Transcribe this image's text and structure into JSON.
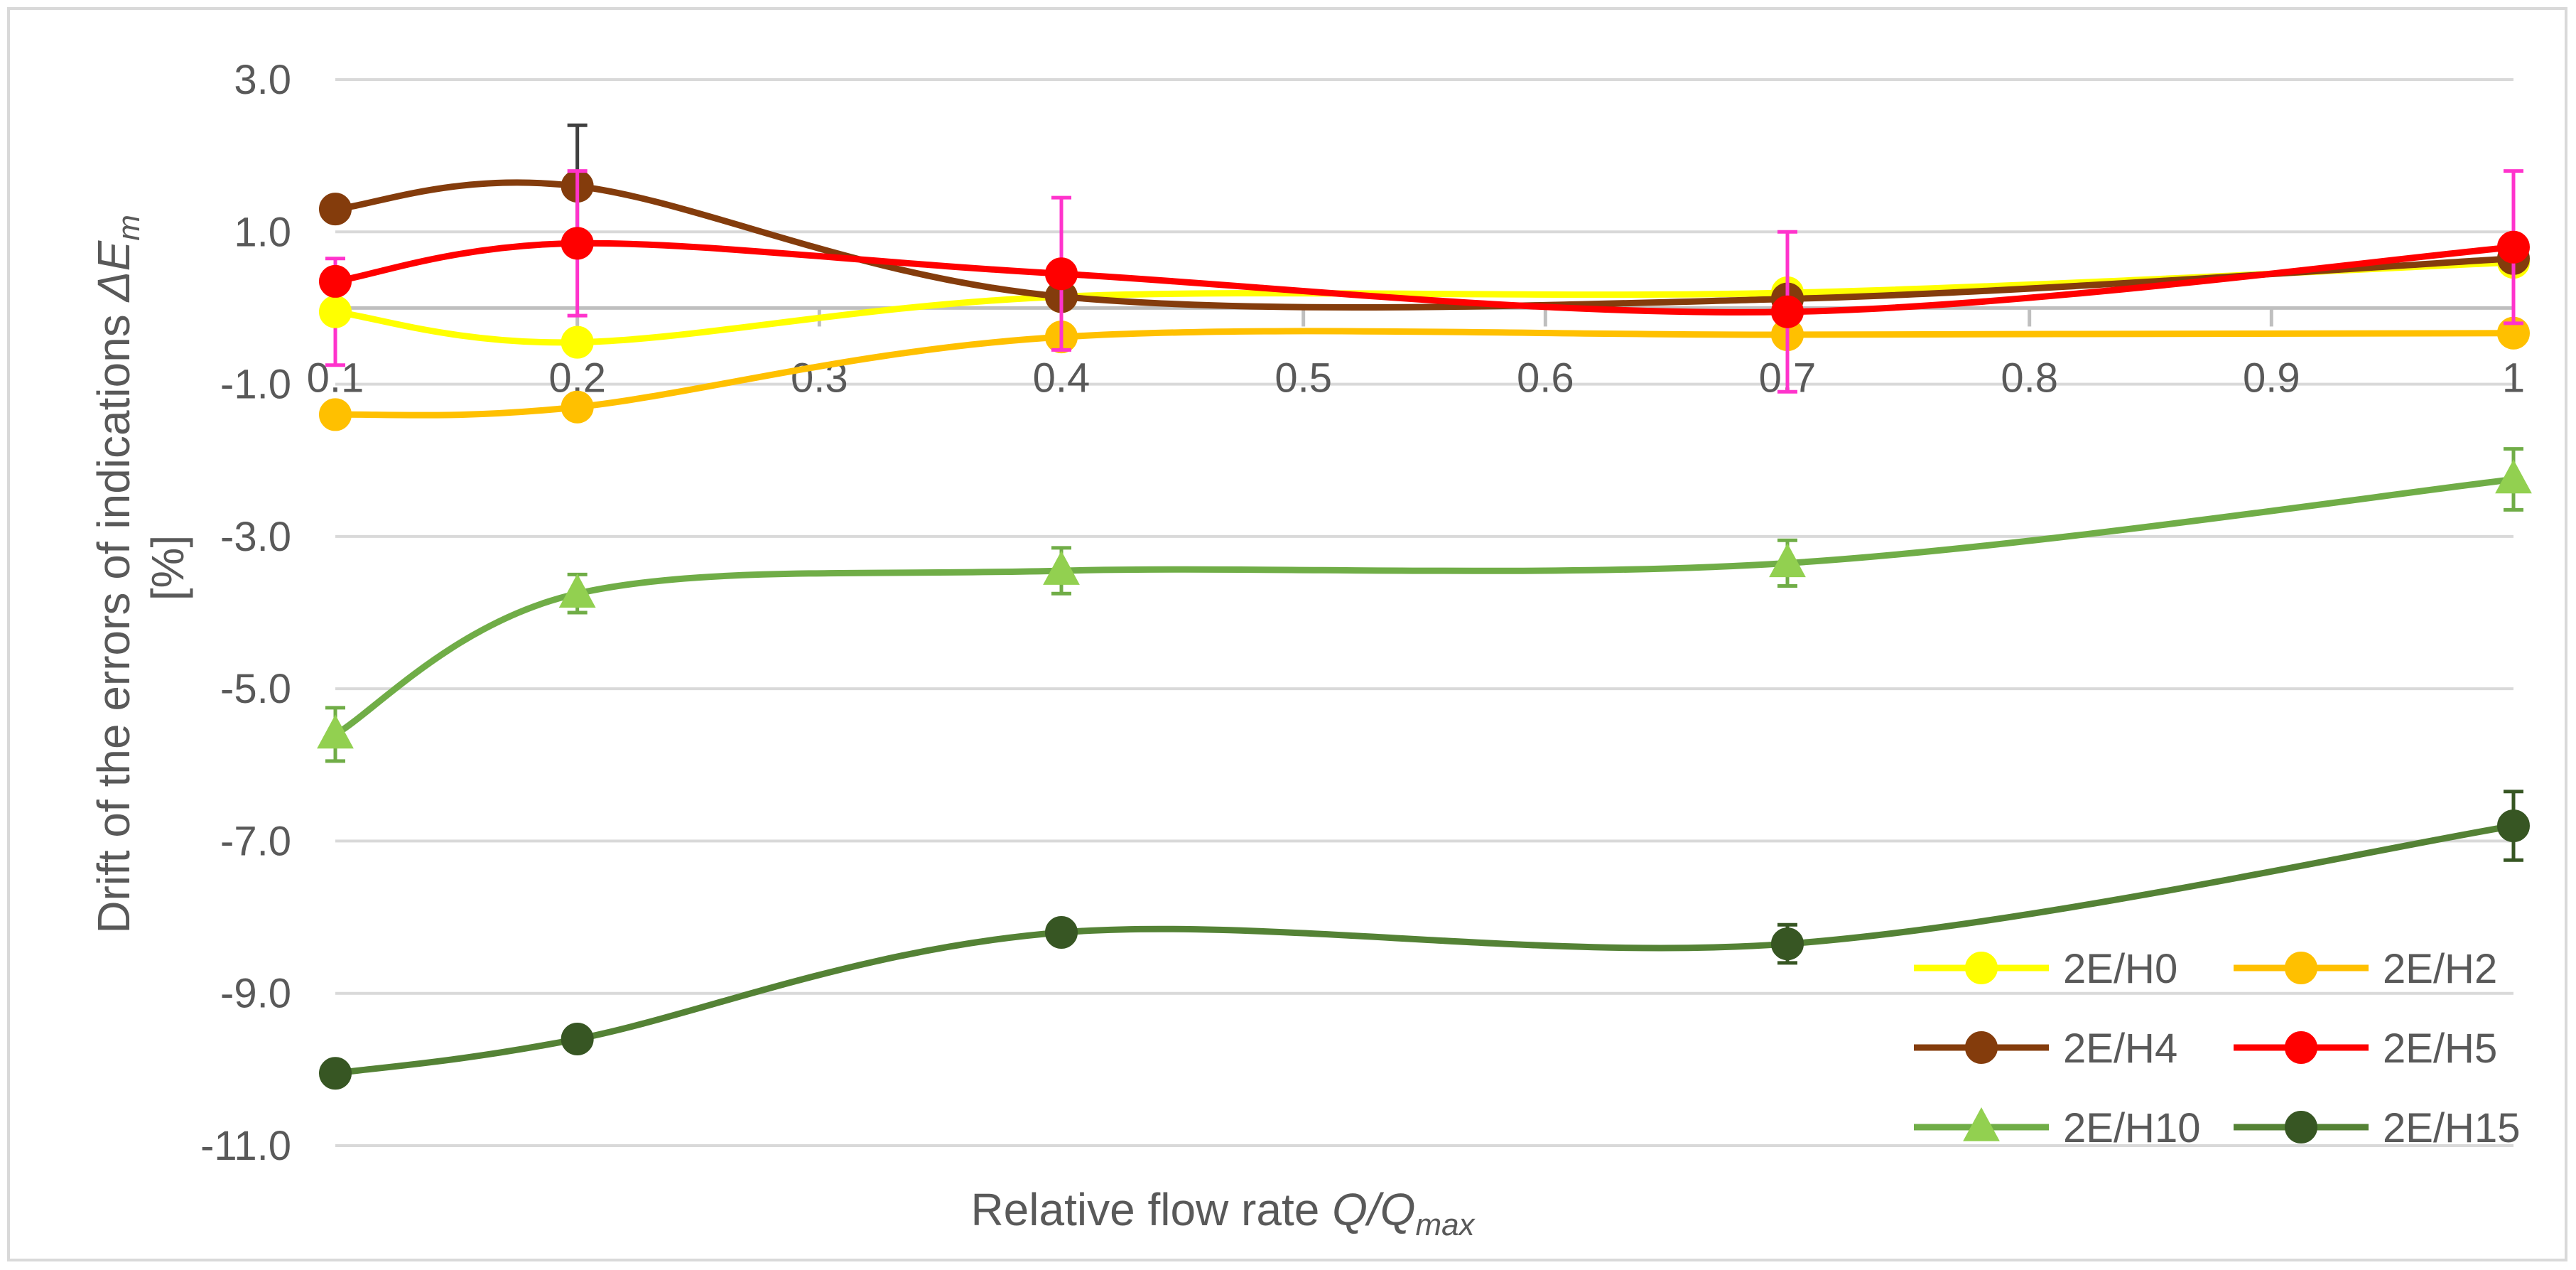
{
  "chart_data": {
    "type": "line",
    "title": "",
    "xlabel_prefix": "Relative flow rate ",
    "xlabel_var": "Q/Q",
    "xlabel_sub": "max",
    "ylabel_line1": "Drift of the errors of indications ",
    "ylabel_var": "ΔE",
    "ylabel_sub": "m",
    "ylabel_line2": "[%]",
    "xlim": [
      0.1,
      1
    ],
    "ylim": [
      -11,
      3
    ],
    "x_ticks": [
      "0.1",
      "0.2",
      "0.3",
      "0.4",
      "0.5",
      "0.6",
      "0.7",
      "0.8",
      "0.9",
      "1"
    ],
    "x_tick_values": [
      0.1,
      0.2,
      0.3,
      0.4,
      0.5,
      0.6,
      0.7,
      0.8,
      0.9,
      1
    ],
    "y_ticks": [
      "3.0",
      "1.0",
      "-1.0",
      "-3.0",
      "-5.0",
      "-7.0",
      "-9.0",
      "-11.0"
    ],
    "y_tick_values": [
      3,
      1,
      -1,
      -3,
      -5,
      -7,
      -9,
      -11
    ],
    "x_axis_at_y": 0,
    "grid": "horizontal",
    "legend_position": "bottom-right",
    "series": [
      {
        "name": "2E/H0",
        "color": "#ffff00",
        "marker": "circle",
        "x": [
          0.1,
          0.2,
          0.4,
          0.7,
          1
        ],
        "y": [
          -0.05,
          -0.45,
          0.15,
          0.2,
          0.6
        ],
        "err": [
          0.7,
          0.0,
          0.0,
          0.0,
          0.0
        ],
        "err_color": "#ff33cc"
      },
      {
        "name": "2E/H2",
        "color": "#ffc000",
        "marker": "circle",
        "x": [
          0.1,
          0.2,
          0.4,
          0.7,
          1
        ],
        "y": [
          -1.4,
          -1.3,
          -0.38,
          -0.35,
          -0.33
        ],
        "err": [
          0.0,
          0.0,
          0.0,
          0.0,
          0.0
        ],
        "err_color": "#ffc000"
      },
      {
        "name": "2E/H4",
        "color": "#843c0c",
        "marker": "circle",
        "x": [
          0.1,
          0.2,
          0.4,
          0.7,
          1
        ],
        "y": [
          1.3,
          1.6,
          0.15,
          0.12,
          0.65
        ],
        "err": [
          0.0,
          0.8,
          0.0,
          0.0,
          0.0
        ],
        "err_color": "#404040"
      },
      {
        "name": "2E/H5",
        "color": "#ff0000",
        "marker": "circle",
        "x": [
          0.1,
          0.2,
          0.4,
          0.7,
          1
        ],
        "y": [
          0.35,
          0.85,
          0.45,
          -0.05,
          0.8
        ],
        "err": [
          0.0,
          0.95,
          1.0,
          1.05,
          1.0
        ],
        "err_color": "#ff33cc"
      },
      {
        "name": "2E/H10",
        "color": "#70ad47",
        "marker": "triangle",
        "marker_color": "#92d050",
        "x": [
          0.1,
          0.2,
          0.4,
          0.7,
          1
        ],
        "y": [
          -5.6,
          -3.75,
          -3.45,
          -3.35,
          -2.25
        ],
        "err": [
          0.35,
          0.25,
          0.3,
          0.3,
          0.4
        ],
        "err_color": "#70ad47"
      },
      {
        "name": "2E/H15",
        "color": "#548235",
        "marker": "circle",
        "marker_color": "#375623",
        "x": [
          0.1,
          0.2,
          0.4,
          0.7,
          1
        ],
        "y": [
          -10.05,
          -9.6,
          -8.2,
          -8.35,
          -6.8
        ],
        "err": [
          0.0,
          0.0,
          0.0,
          0.25,
          0.45
        ],
        "err_color": "#375623"
      }
    ]
  }
}
